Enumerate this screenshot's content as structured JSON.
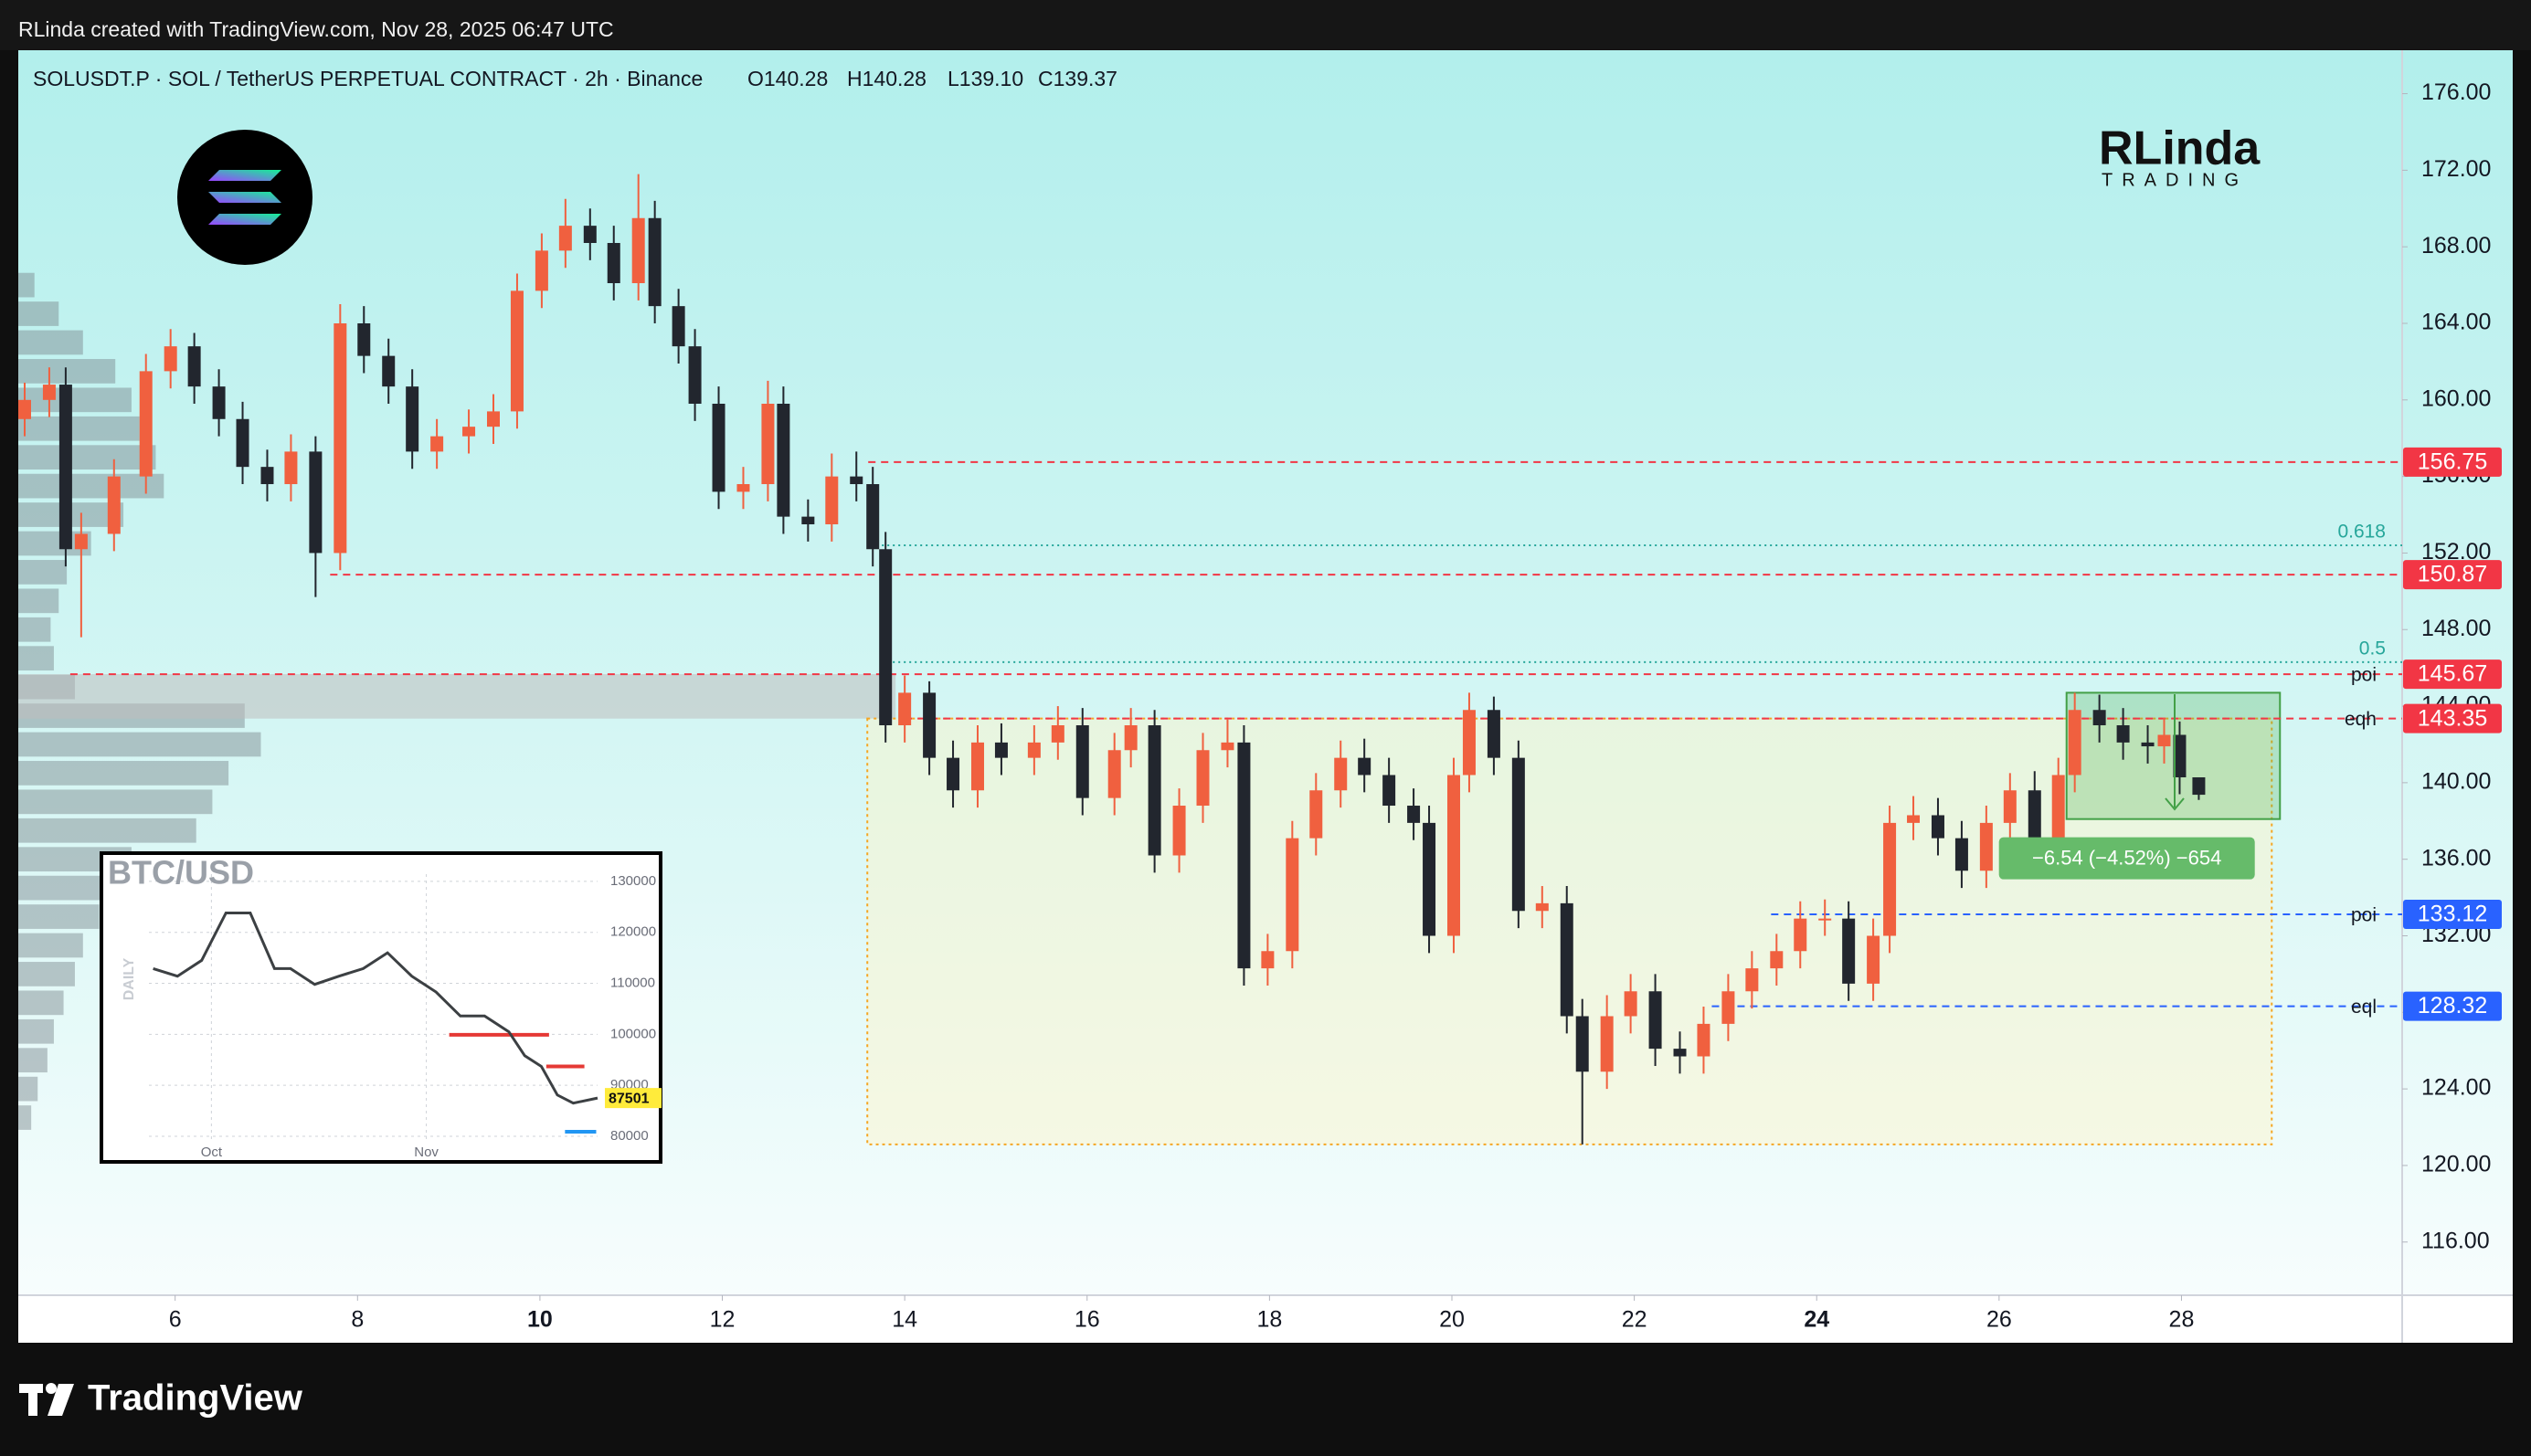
{
  "header": {
    "credit": "RLinda created with TradingView.com, Nov 28, 2025 06:47 UTC"
  },
  "logo": {
    "name": "RLinda",
    "tagline": "TRADING"
  },
  "footer": {
    "brand": "TradingView"
  },
  "chart_data": [
    {
      "type": "candlestick",
      "symbol": "SOLUSDT.P · SOL / TetherUS PERPETUAL CONTRACT · 2h · Binance",
      "ohlc_labels": [
        "O140.28",
        "H140.28",
        "L139.10",
        "C139.37"
      ],
      "x": [
        4.35,
        4.62,
        4.8,
        4.97,
        5.33,
        5.68,
        5.95,
        6.21,
        6.48,
        6.74,
        7.01,
        7.27,
        7.54,
        7.81,
        8.07,
        8.34,
        8.6,
        8.87,
        9.22,
        9.49,
        9.75,
        10.02,
        10.28,
        10.55,
        10.81,
        11.08,
        11.26,
        11.52,
        11.7,
        11.96,
        12.23,
        12.5,
        12.67,
        12.94,
        13.2,
        13.47,
        13.65,
        13.79,
        14.0,
        14.27,
        14.53,
        14.8,
        15.06,
        15.42,
        15.68,
        15.95,
        16.3,
        16.48,
        16.74,
        17.01,
        17.27,
        17.54,
        17.72,
        17.98,
        18.25,
        18.51,
        18.78,
        19.04,
        19.31,
        19.58,
        19.75,
        20.02,
        20.19,
        20.46,
        20.73,
        20.99,
        21.26,
        21.43,
        21.7,
        21.96,
        22.23,
        22.5,
        22.76,
        23.03,
        23.29,
        23.56,
        23.82,
        24.09,
        24.35,
        24.62,
        24.8,
        25.06,
        25.33,
        25.59,
        25.86,
        26.12,
        26.39,
        26.65,
        26.83,
        27.1,
        27.36,
        27.63,
        27.81,
        27.98,
        28.19
      ],
      "open": [
        159,
        160,
        160.8,
        152.2,
        153,
        156,
        161.5,
        162.8,
        160.7,
        159,
        156.5,
        155.6,
        157.3,
        152,
        164,
        162.3,
        160.7,
        157.3,
        158.1,
        158.6,
        159.4,
        165.7,
        167.8,
        169.1,
        168.2,
        166.1,
        169.5,
        164.9,
        162.8,
        159.8,
        155.2,
        155.6,
        159.8,
        153.9,
        153.5,
        156,
        155.6,
        152.2,
        143,
        144.7,
        141.3,
        139.6,
        142.1,
        141.3,
        142.1,
        143,
        139.2,
        141.7,
        143,
        136.2,
        138.8,
        141.7,
        142.1,
        130.3,
        131.2,
        137.1,
        139.6,
        141.3,
        140.4,
        138.8,
        137.9,
        132,
        140.4,
        143.8,
        141.3,
        133.3,
        133.7,
        127.8,
        124.9,
        127.8,
        129.1,
        126.1,
        125.7,
        127.4,
        129.1,
        130.3,
        131.2,
        132.9,
        132.9,
        129.5,
        132,
        137.9,
        138.3,
        137.1,
        135.4,
        137.9,
        139.6,
        137.1,
        140.4,
        143.8,
        143,
        142.1,
        141.9,
        142.5,
        140.28
      ],
      "high": [
        160.9,
        161.7,
        161.7,
        154.1,
        156.9,
        162.4,
        163.7,
        163.5,
        161.6,
        159.9,
        157.4,
        158.2,
        158.1,
        165,
        164.9,
        163.2,
        161.6,
        159,
        159.5,
        160.3,
        166.6,
        168.7,
        170.5,
        170,
        169.1,
        171.8,
        170.4,
        165.8,
        163.7,
        160.7,
        156.5,
        161,
        160.7,
        154.8,
        157.2,
        157.3,
        156.5,
        153.1,
        145.6,
        145.3,
        142.2,
        143,
        143.1,
        143,
        144,
        143.9,
        142.6,
        143.9,
        143.8,
        139.7,
        142.6,
        143.3,
        143,
        132.1,
        138,
        140.5,
        142.2,
        142.3,
        141.3,
        139.7,
        138.8,
        141.3,
        144.7,
        144.5,
        142.2,
        134.6,
        134.6,
        128.7,
        128.9,
        130,
        130,
        127,
        128.3,
        130,
        131.2,
        132.1,
        133.8,
        133.9,
        133.8,
        132.9,
        138.8,
        139.3,
        139.2,
        138,
        138.8,
        140.5,
        140.6,
        141.3,
        144.7,
        144.6,
        143.9,
        143,
        143.4,
        143.2,
        140.28
      ],
      "low": [
        158.1,
        159.1,
        151.3,
        147.6,
        152.1,
        155.1,
        160.6,
        159.8,
        158.1,
        155.6,
        154.7,
        154.7,
        149.7,
        151.1,
        161.4,
        159.8,
        156.4,
        156.4,
        157.2,
        157.7,
        158.5,
        164.8,
        166.9,
        167.3,
        165.2,
        165.2,
        164,
        161.9,
        158.9,
        154.3,
        154.3,
        154.7,
        153,
        152.6,
        152.6,
        154.7,
        151.3,
        142.1,
        142.1,
        140.4,
        138.7,
        138.7,
        140.4,
        140.4,
        141.2,
        138.3,
        138.3,
        140.8,
        135.3,
        135.3,
        137.9,
        140.8,
        129.4,
        129.4,
        130.3,
        136.2,
        138.7,
        139.5,
        137.9,
        137,
        131.1,
        131.1,
        139.5,
        140.4,
        132.4,
        132.4,
        126.9,
        121.1,
        124,
        126.9,
        125.2,
        124.8,
        124.8,
        126.5,
        128.2,
        129.4,
        130.3,
        132,
        128.6,
        128.6,
        131.1,
        137,
        136.2,
        134.5,
        134.5,
        137,
        136.2,
        136.2,
        139.5,
        142.1,
        141.2,
        141,
        141,
        139.4,
        139.1
      ],
      "close": [
        160,
        160.8,
        152.2,
        153,
        156,
        161.5,
        162.8,
        160.7,
        159,
        156.5,
        155.6,
        157.3,
        152,
        164,
        162.3,
        160.7,
        157.3,
        158.1,
        158.6,
        159.4,
        165.7,
        167.8,
        169.1,
        168.2,
        166.1,
        169.5,
        164.9,
        162.8,
        159.8,
        155.2,
        155.6,
        159.8,
        153.9,
        153.5,
        156,
        155.6,
        152.2,
        143,
        144.7,
        141.3,
        139.6,
        142.1,
        141.3,
        142.1,
        143,
        139.2,
        141.7,
        143,
        136.2,
        138.8,
        141.7,
        142.1,
        130.3,
        131.2,
        137.1,
        139.6,
        141.3,
        140.4,
        138.8,
        137.9,
        132,
        140.4,
        143.8,
        141.3,
        133.3,
        133.7,
        127.8,
        124.9,
        127.8,
        129.1,
        126.1,
        125.7,
        127.4,
        129.1,
        130.3,
        131.2,
        132.9,
        132.9,
        129.5,
        132,
        137.9,
        138.3,
        137.1,
        135.4,
        137.9,
        139.6,
        137.1,
        140.4,
        143.8,
        143,
        142.1,
        141.9,
        142.5,
        140.28,
        139.37
      ],
      "up_color": "#f0603f",
      "down_color": "#22262e",
      "xlim": [
        4.28,
        30.42
      ],
      "xticks": [
        6,
        8,
        10,
        12,
        14,
        16,
        18,
        20,
        22,
        24,
        26,
        28
      ],
      "xticks_bold": [
        10,
        24
      ],
      "ylim": [
        113.22,
        178.27
      ],
      "yticks": [
        {
          "value": 116,
          "label": "116.00"
        },
        {
          "value": 120,
          "label": "120.00"
        },
        {
          "value": 124,
          "label": "124.00"
        },
        {
          "value": 128,
          "label": "128.00"
        },
        {
          "value": 132,
          "label": "132.00"
        },
        {
          "value": 136,
          "label": "136.00"
        },
        {
          "value": 140,
          "label": "140.00"
        },
        {
          "value": 144,
          "label": "144.00"
        },
        {
          "value": 148,
          "label": "148.00"
        },
        {
          "value": 152,
          "label": "152.00"
        },
        {
          "value": 156,
          "label": "156.00"
        },
        {
          "value": 160,
          "label": "160.00"
        },
        {
          "value": 164,
          "label": "164.00"
        },
        {
          "value": 168,
          "label": "168.00"
        },
        {
          "value": 172,
          "label": "172.00"
        },
        {
          "value": 176,
          "label": "176.00"
        }
      ],
      "grid": false,
      "levels": [
        {
          "value": 156.75,
          "from": 13.6,
          "color": "#f23645"
        },
        {
          "value": 150.87,
          "from": 7.7,
          "color": "#f23645"
        },
        {
          "value": 145.67,
          "from": 4.85,
          "color": "#f23645",
          "tag": "poi"
        },
        {
          "value": 143.35,
          "from": 14.0,
          "color": "#f23645",
          "tag": "eqh"
        },
        {
          "value": 133.12,
          "from": 23.5,
          "color": "#2962ff",
          "tag": "poi"
        },
        {
          "value": 128.32,
          "from": 22.85,
          "color": "#2962ff",
          "tag": "eql"
        }
      ],
      "fib_levels": [
        {
          "value": 152.4,
          "label": "0.618",
          "from": 13.75,
          "color": "#26a69a"
        },
        {
          "value": 146.3,
          "label": "0.5",
          "from": 13.75,
          "color": "#26a69a"
        }
      ],
      "zones": [
        {
          "x": [
            4.28,
            13.9
          ],
          "y": [
            143.35,
            145.67
          ],
          "color": "rgba(190,190,190,0.55)"
        },
        {
          "x": [
            13.59,
            28.99
          ],
          "y": [
            121.1,
            143.35
          ],
          "color": "rgba(255,244,200,0.45)",
          "border": "#f5a623",
          "dashed": true
        },
        {
          "x": [
            26.74,
            29.08
          ],
          "y": [
            138.1,
            144.7
          ],
          "color": "rgba(76,175,80,0.28)",
          "border": "#43a047"
        }
      ],
      "measure": {
        "text": "−6.54 (−4.52%) −654",
        "color": "#66bb6a"
      },
      "volume_profile": {
        "prices": [
          166,
          164.5,
          163,
          161.5,
          160,
          158.5,
          157,
          155.5,
          154,
          152.5,
          151,
          149.5,
          148,
          146.5,
          145,
          143.5,
          142,
          140.5,
          139,
          137.5,
          136,
          134.5,
          133,
          131.5,
          130,
          128.5,
          127,
          125.5,
          124,
          122.5
        ],
        "values": [
          10,
          25,
          40,
          60,
          70,
          75,
          85,
          90,
          65,
          45,
          30,
          25,
          20,
          22,
          35,
          140,
          150,
          130,
          120,
          110,
          70,
          60,
          50,
          40,
          35,
          28,
          22,
          18,
          12,
          8
        ],
        "color": "rgba(120,130,138,0.45)"
      }
    },
    {
      "type": "line",
      "title": "BTC/USD",
      "subtitle": "DAILY",
      "x": [
        21.6,
        25.1,
        28.6,
        32.1,
        35.6,
        39.1,
        41.4,
        44.9,
        48.4,
        51.9,
        55.4,
        58.9,
        62.4,
        65.9,
        69.4,
        72.9,
        75.2,
        77.6,
        79.9,
        82.2,
        85.7
      ],
      "values": [
        112900,
        111400,
        114500,
        123800,
        123800,
        112900,
        112900,
        109800,
        111400,
        112900,
        116000,
        111400,
        108300,
        103600,
        103600,
        100500,
        95800,
        93700,
        88100,
        86500,
        87501
      ],
      "color": "#3c4043",
      "xlim": [
        14.4,
        85.7
      ],
      "xticks": [
        {
          "value": 30,
          "label": "Oct"
        },
        {
          "value": 61,
          "label": "Nov"
        }
      ],
      "ylim": [
        75700,
        135000
      ],
      "yticks": [
        80000,
        90000,
        100000,
        110000,
        120000,
        130000
      ],
      "segments": [
        {
          "value": 99900,
          "from": 64.3,
          "to": 78.7,
          "color": "#e53935"
        },
        {
          "value": 93700,
          "from": 78.3,
          "to": 83.8,
          "color": "#e53935"
        },
        {
          "value": 80900,
          "from": 81,
          "to": 85.5,
          "color": "#2196f3"
        }
      ],
      "last_label_color": "#ffeb3b"
    }
  ]
}
